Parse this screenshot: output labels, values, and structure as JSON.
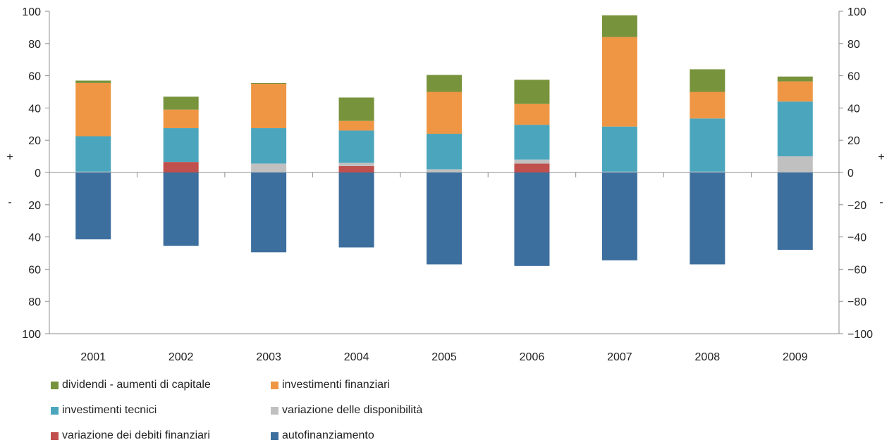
{
  "chart_data": {
    "type": "bar",
    "stacked": true,
    "categories": [
      "2001",
      "2002",
      "2003",
      "2004",
      "2005",
      "2006",
      "2007",
      "2008",
      "2009"
    ],
    "ylim": [
      -100,
      100
    ],
    "grid": false,
    "legend_position": "bottom",
    "left_tick_labels": [
      "100",
      "80",
      "60",
      "40",
      "20",
      "0",
      "20",
      "40",
      "60",
      "80",
      "100"
    ],
    "right_tick_labels": [
      "100",
      "80",
      "60",
      "40",
      "20",
      "0",
      "−20",
      "−40",
      "−60",
      "−80",
      "−100"
    ],
    "sign_labels": {
      "positive": "+",
      "negative": "-"
    },
    "series": [
      {
        "name": "autofinanziamento",
        "color": "#3c6e9e",
        "values": [
          -41.5,
          -45.5,
          -49.5,
          -46.5,
          -57,
          -58,
          -54.5,
          -57,
          -48
        ]
      },
      {
        "name": "variazione dei debiti finanziari",
        "color": "#c0504d",
        "values": [
          0,
          6.5,
          0,
          4,
          0,
          5.5,
          0,
          0,
          0
        ]
      },
      {
        "name": "variazione delle disponibilità",
        "color": "#c0c0c0",
        "values": [
          0.5,
          0,
          5.5,
          2,
          2,
          2.5,
          0.5,
          0.5,
          10
        ]
      },
      {
        "name": "investimenti tecnici",
        "color": "#4ba6bd",
        "values": [
          22,
          21,
          22,
          20,
          22,
          21.5,
          28,
          33,
          34
        ]
      },
      {
        "name": "investimenti finanziari",
        "color": "#ef9645",
        "values": [
          33,
          11.5,
          27.5,
          6,
          26,
          13,
          55.5,
          16.5,
          12.5
        ]
      },
      {
        "name": "dividendi - aumenti di capitale",
        "color": "#77933c",
        "values": [
          1.5,
          8,
          0.5,
          14.5,
          10.5,
          15,
          13.5,
          14,
          3
        ]
      }
    ]
  },
  "legend": {
    "items": [
      {
        "label": "dividendi - aumenti di capitale",
        "color": "#77933c"
      },
      {
        "label": "investimenti finanziari",
        "color": "#ef9645"
      },
      {
        "label": "investimenti tecnici",
        "color": "#4ba6bd"
      },
      {
        "label": "variazione delle disponibilità",
        "color": "#c0c0c0"
      },
      {
        "label": "variazione dei debiti finanziari",
        "color": "#c0504d"
      },
      {
        "label": "autofinanziamento",
        "color": "#3c6e9e"
      }
    ]
  }
}
